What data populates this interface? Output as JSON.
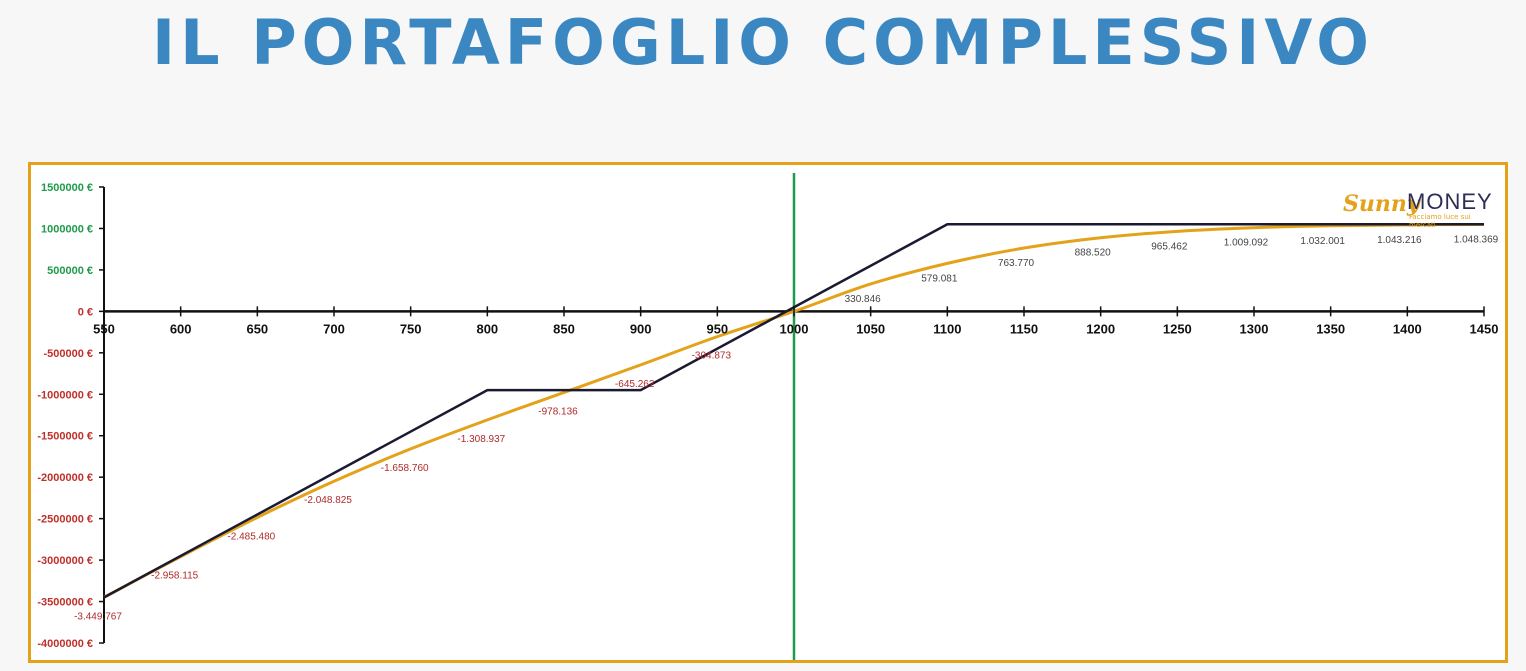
{
  "title": "IL PORTAFOGLIO COMPLESSIVO",
  "logo": {
    "brand_prefix": "Sunny",
    "brand_suffix": "MONEY",
    "tagline": "Facciamo luce sui mercati"
  },
  "colors": {
    "title": "#3a87c2",
    "frame": "#e3a21a",
    "line_expiry": "#1a1a33",
    "line_current": "#e3a21a",
    "vertical_marker": "#1e9a4a",
    "positive_labels": "#1e9a4a",
    "negative_labels": "#c0302a",
    "positive_data_labels": "#444444",
    "negative_data_labels": "#b02a2a"
  },
  "chart_data": {
    "type": "line",
    "xlim": [
      550,
      1450
    ],
    "ylim": [
      -4000000,
      1500000
    ],
    "x_ticks": [
      550,
      600,
      650,
      700,
      750,
      800,
      850,
      900,
      950,
      1000,
      1050,
      1100,
      1150,
      1200,
      1250,
      1300,
      1350,
      1400,
      1450
    ],
    "x_tick_labels": [
      "550",
      "600",
      "650",
      "700",
      "750",
      "800",
      "850",
      "900",
      "950",
      "1000",
      "1050",
      "1100",
      "1150",
      "1200",
      "1250",
      "1300",
      "1350",
      "1400",
      "1450"
    ],
    "y_ticks": [
      1500000,
      1000000,
      500000,
      0,
      -500000,
      -1000000,
      -1500000,
      -2000000,
      -2500000,
      -3000000,
      -3500000,
      -4000000
    ],
    "y_tick_labels": [
      "1500000 €",
      "1000000 €",
      "500000 €",
      "0 €",
      "-500000 €",
      "-1000000 €",
      "-1500000 €",
      "-2000000 €",
      "-2500000 €",
      "-3000000 €",
      "-3500000 €",
      "-4000000 €"
    ],
    "vertical_marker_x": 1000,
    "grid": false,
    "series": [
      {
        "style": "expiry",
        "x": [
          550,
          800,
          900,
          1100,
          1450
        ],
        "y": [
          -3450000,
          -950000,
          -950000,
          1050000,
          1050000
        ]
      },
      {
        "style": "current",
        "x": [
          550,
          600,
          650,
          700,
          750,
          800,
          850,
          900,
          950,
          1000,
          1050,
          1100,
          1150,
          1200,
          1250,
          1300,
          1350,
          1400,
          1450
        ],
        "y": [
          -3449767,
          -2958115,
          -2485480,
          -2048825,
          -1658760,
          -1308937,
          -978136,
          -645262,
          -304873,
          0,
          330846,
          579081,
          763770,
          888520,
          965462,
          1009092,
          1032001,
          1043216,
          1048369
        ],
        "data_labels": [
          "-3.449.767",
          "-2.958.115",
          "-2.485.480",
          "-2.048.825",
          "-1.658.760",
          "-1.308.937",
          "-978.136",
          "-645.262",
          "-304.873",
          "",
          "330.846",
          "579.081",
          "763.770",
          "888.520",
          "965.462",
          "1.009.092",
          "1.032.001",
          "1.043.216",
          "1.048.369"
        ]
      }
    ]
  }
}
